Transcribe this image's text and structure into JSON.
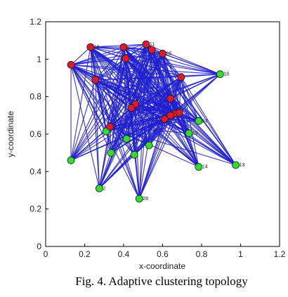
{
  "caption": "Fig. 4. Adaptive clustering topology",
  "colors": {
    "edge": "#1f1fd0",
    "cluster_head": "#e0192a",
    "cluster_member": "#2ee02e",
    "node_stroke": "#1a1a1a"
  },
  "chart_data": {
    "type": "scatter",
    "title": "",
    "xlabel": "x-coordinate",
    "ylabel": "y-coordinate",
    "xlim": [
      0,
      1.2
    ],
    "ylim": [
      0,
      1.2
    ],
    "xticks": [
      "0",
      "0.2",
      "0.4",
      "0.6",
      "0.8",
      "1",
      "1.2"
    ],
    "yticks": [
      "0",
      "0.2",
      "0.4",
      "0.6",
      "0.8",
      "1",
      "1.2"
    ],
    "grid": false,
    "series": [
      {
        "points": [
          {
            "label": "",
            "x": 0.13,
            "y": 0.97
          },
          {
            "label": "16",
            "x": 0.23,
            "y": 1.065
          },
          {
            "label": "",
            "x": 0.4,
            "y": 1.065
          },
          {
            "label": "11",
            "x": 0.515,
            "y": 1.08
          },
          {
            "label": "",
            "x": 0.545,
            "y": 1.05
          },
          {
            "label": "25",
            "x": 0.6,
            "y": 1.03
          },
          {
            "label": "",
            "x": 0.41,
            "y": 1.005
          },
          {
            "label": "",
            "x": 0.255,
            "y": 0.89
          },
          {
            "label": "",
            "x": 0.695,
            "y": 0.905
          },
          {
            "label": "",
            "x": 0.64,
            "y": 0.79
          },
          {
            "label": "",
            "x": 0.46,
            "y": 0.76
          },
          {
            "label": "",
            "x": 0.44,
            "y": 0.74
          },
          {
            "label": "",
            "x": 0.665,
            "y": 0.71
          },
          {
            "label": "",
            "x": 0.685,
            "y": 0.715
          },
          {
            "label": "",
            "x": 0.61,
            "y": 0.68
          },
          {
            "label": "",
            "x": 0.64,
            "y": 0.7
          },
          {
            "label": "",
            "x": 0.33,
            "y": 0.64
          }
        ]
      },
      {
        "points": [
          {
            "label": "18",
            "x": 0.895,
            "y": 0.92
          },
          {
            "label": "24",
            "x": 0.785,
            "y": 0.67
          },
          {
            "label": "19",
            "x": 0.735,
            "y": 0.605
          },
          {
            "label": "",
            "x": 0.31,
            "y": 0.615
          },
          {
            "label": "",
            "x": 0.415,
            "y": 0.575
          },
          {
            "label": "",
            "x": 0.53,
            "y": 0.54
          },
          {
            "label": "",
            "x": 0.335,
            "y": 0.5
          },
          {
            "label": "",
            "x": 0.455,
            "y": 0.49
          },
          {
            "label": "",
            "x": 0.13,
            "y": 0.46
          },
          {
            "label": "14",
            "x": 0.785,
            "y": 0.425
          },
          {
            "label": "13",
            "x": 0.975,
            "y": 0.435
          },
          {
            "label": "2",
            "x": 0.275,
            "y": 0.31
          },
          {
            "label": "28",
            "x": 0.48,
            "y": 0.255
          }
        ]
      }
    ],
    "edges_from_heads_to_all_nodes": true
  }
}
